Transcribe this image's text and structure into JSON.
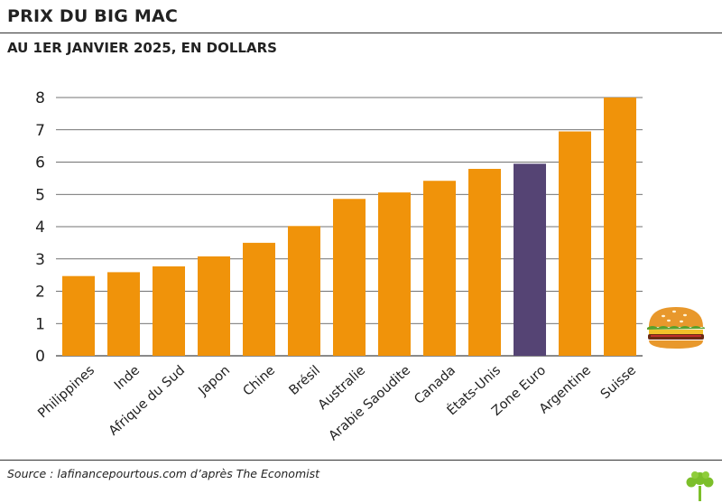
{
  "header": {
    "title": "PRIX DU BIG MAC",
    "subtitle": "AU 1ER JANVIER 2025, EN DOLLARS"
  },
  "footer": {
    "source": "Source : lafinancepourtous.com d’après The Economist"
  },
  "colors": {
    "bar": "#f0930a",
    "highlight": "#554474",
    "grid": "#444444",
    "text": "#222222"
  },
  "icons": [
    "burger-icon",
    "tree-logo-icon"
  ],
  "chart_data": {
    "type": "bar",
    "categories": [
      "Philippines",
      "Inde",
      "Afrique du Sud",
      "Japon",
      "Chine",
      "Brésil",
      "Australie",
      "Arabie Saoudite",
      "Canada",
      "États-Unis",
      "Zone Euro",
      "Argentine",
      "Suisse"
    ],
    "values": [
      2.47,
      2.59,
      2.77,
      3.08,
      3.5,
      4.02,
      4.86,
      5.06,
      5.42,
      5.79,
      5.95,
      6.95,
      8.0
    ],
    "highlight_category": "Zone Euro",
    "title": "PRIX DU BIG MAC",
    "subtitle": "AU 1ER JANVIER 2025, EN DOLLARS",
    "ylim": [
      0,
      8
    ],
    "yticks": [
      "0",
      "1",
      "2",
      "3",
      "4",
      "5",
      "6",
      "7",
      "8"
    ],
    "grid": true
  }
}
